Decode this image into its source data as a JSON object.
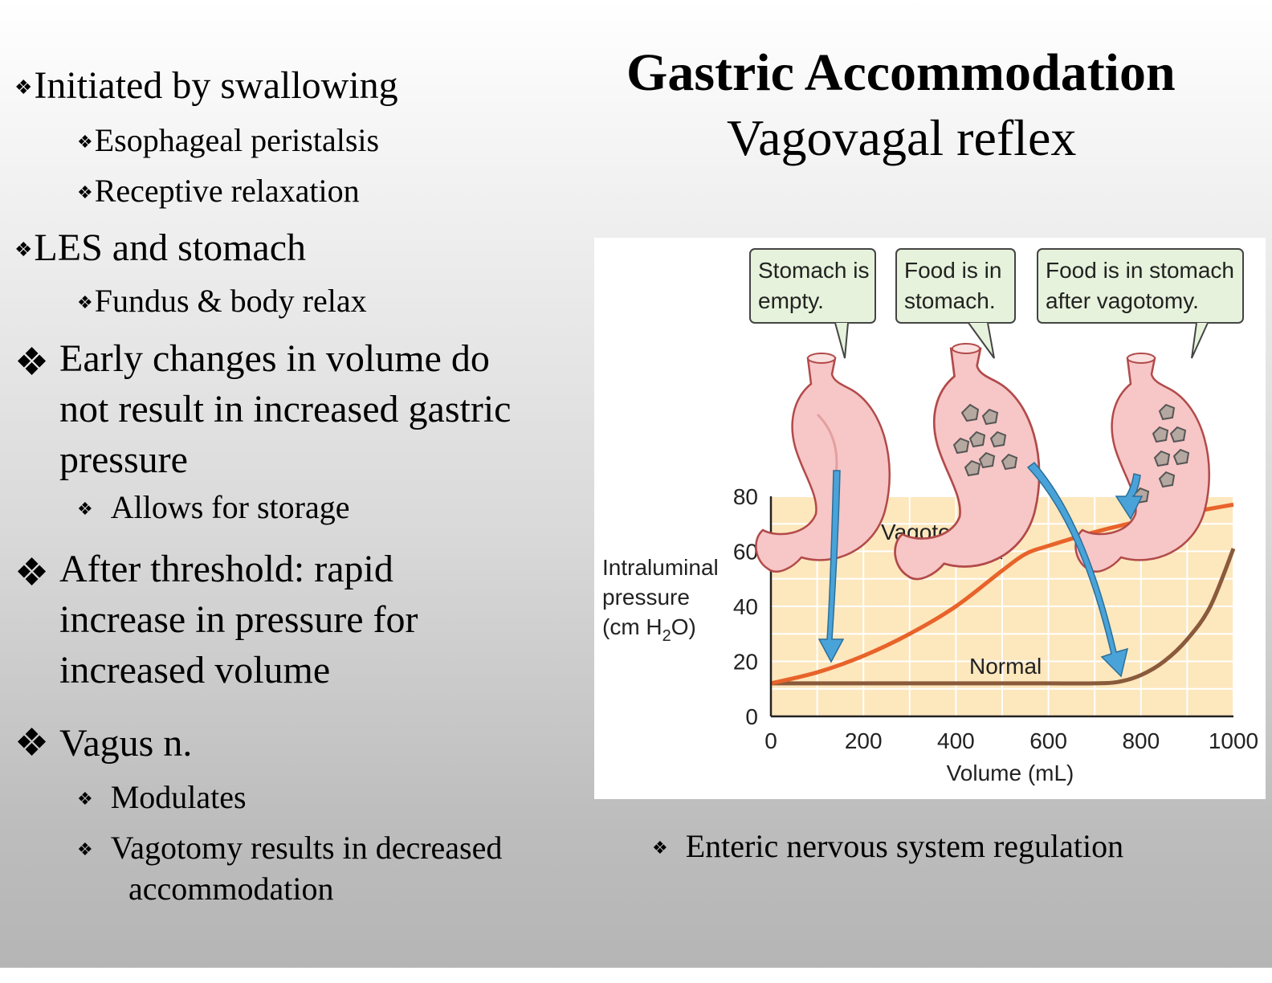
{
  "slide": {
    "title": "Gastric Accommodation",
    "subtitle": "Vagovagal reflex",
    "bullet_glyph": "❖",
    "bullets": [
      {
        "text": "Initiated by swallowing",
        "sub": [
          "Esophageal peristalsis",
          "Receptive relaxation"
        ]
      },
      {
        "text": "LES and stomach",
        "sub": [
          "Fundus & body relax"
        ]
      },
      {
        "lines": [
          "Early changes in volume do",
          "not result in increased gastric",
          "pressure"
        ],
        "sub": [
          "Allows for storage"
        ]
      },
      {
        "lines": [
          "After threshold: rapid",
          "increase in pressure for",
          "increased volume"
        ]
      },
      {
        "text": "Vagus n.",
        "sub": [
          "Modulates"
        ],
        "sub_wrapped": [
          "Vagotomy results in decreased",
          "accommodation"
        ]
      }
    ],
    "right_bullet": "Enteric nervous system regulation"
  },
  "figure": {
    "callouts": [
      {
        "lines": [
          "Stomach is",
          "empty."
        ]
      },
      {
        "lines": [
          "Food is in",
          "stomach."
        ]
      },
      {
        "lines": [
          "Food is in stomach",
          "after vagotomy."
        ]
      }
    ],
    "ylabel_lines": [
      "Intraluminal",
      "pressure",
      "(cm H",
      "2",
      "O)"
    ],
    "colors": {
      "plot_bg": "#fde7bd",
      "vagotomy": "#e8632a",
      "normal": "#8a5a3c",
      "arrow": "#4aa3d8",
      "callout_bg": "#e6f2db",
      "stomach": "#f7c6c6"
    }
  },
  "chart_data": {
    "type": "line",
    "xlabel": "Volume (mL)",
    "ylabel": "Intraluminal pressure (cm H2O)",
    "xlim": [
      0,
      1000
    ],
    "ylim": [
      0,
      80
    ],
    "xticks": [
      "0",
      "200",
      "400",
      "600",
      "800",
      "1000"
    ],
    "yticks": [
      "0",
      "20",
      "40",
      "60",
      "80"
    ],
    "grid": true,
    "series": [
      {
        "name": "Vagotomy",
        "x": [
          0,
          100,
          200,
          300,
          400,
          500,
          550,
          600,
          700,
          800,
          900,
          1000
        ],
        "y": [
          12,
          16,
          22,
          30,
          40,
          53,
          59,
          62,
          67,
          71,
          74,
          77
        ]
      },
      {
        "name": "Normal",
        "x": [
          0,
          100,
          200,
          300,
          400,
          500,
          600,
          700,
          750,
          800,
          850,
          900,
          950,
          1000
        ],
        "y": [
          12,
          12,
          12,
          12,
          12,
          12,
          12,
          12,
          12.5,
          15,
          20,
          28,
          40,
          61
        ]
      }
    ]
  }
}
